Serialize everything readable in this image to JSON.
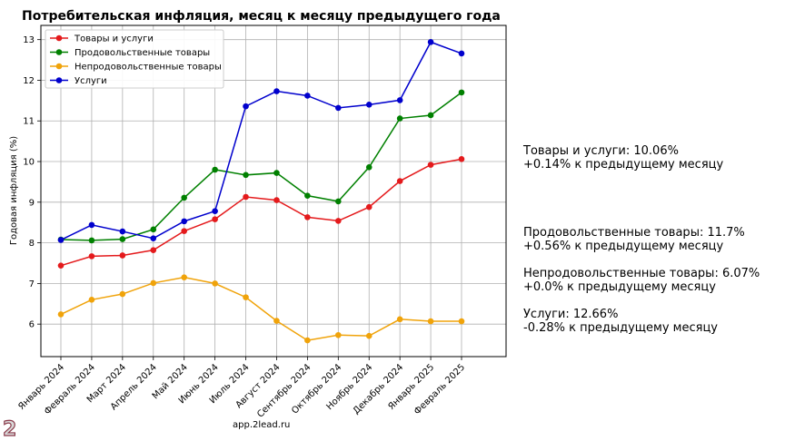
{
  "chart_data": {
    "type": "line",
    "title": "Потребительская инфляция, месяц к месяцу предыдущего года",
    "xlabel": "",
    "ylabel": "Годовая инфляция (%)",
    "categories": [
      "Январь 2024",
      "Февраль 2024",
      "Март 2024",
      "Апрель 2024",
      "Май 2024",
      "Июнь 2024",
      "Июль 2024",
      "Август 2024",
      "Сентябрь 2024",
      "Октябрь 2024",
      "Ноябрь 2024",
      "Декабрь 2024",
      "Январь 2025",
      "Февраль 2025"
    ],
    "ylim": [
      5.2,
      13.35
    ],
    "yticks": [
      6,
      7,
      8,
      9,
      10,
      11,
      12,
      13
    ],
    "grid": true,
    "legend_position": "top-left",
    "series": [
      {
        "name": "Товары и услуги",
        "color": "#e41a1c",
        "values": [
          7.44,
          7.67,
          7.69,
          7.82,
          8.29,
          8.58,
          9.13,
          9.05,
          8.63,
          8.54,
          8.88,
          9.52,
          9.92,
          10.06
        ]
      },
      {
        "name": "Продовольственные товары",
        "color": "#008000",
        "values": [
          8.08,
          8.06,
          8.09,
          8.33,
          9.11,
          9.8,
          9.67,
          9.72,
          9.16,
          9.02,
          9.86,
          11.06,
          11.14,
          11.7
        ]
      },
      {
        "name": "Непродовольственные товары",
        "color": "#f0a30a",
        "values": [
          6.24,
          6.6,
          6.74,
          7.01,
          7.15,
          7.0,
          6.66,
          6.08,
          5.6,
          5.73,
          5.71,
          6.12,
          6.07,
          6.07
        ]
      },
      {
        "name": "Услуги",
        "color": "#0000cd",
        "values": [
          8.07,
          8.44,
          8.28,
          8.11,
          8.53,
          8.78,
          11.36,
          11.73,
          11.62,
          11.32,
          11.4,
          11.51,
          12.94,
          12.66
        ]
      }
    ]
  },
  "side_notes": [
    {
      "line1": "Товары и услуги: 10.06%",
      "line2": "+0.14% к предыдущему месяцу"
    },
    {
      "line1": "Продовольственные товары: 11.7%",
      "line2": "+0.56% к предыдущему месяцу"
    },
    {
      "line1": "Непродовольственные товары: 6.07%",
      "line2": "+0.0% к предыдущему месяцу"
    },
    {
      "line1": "Услуги: 12.66%",
      "line2": "-0.28% к предыдущему месяцу"
    }
  ],
  "watermark": "app.2lead.ru"
}
